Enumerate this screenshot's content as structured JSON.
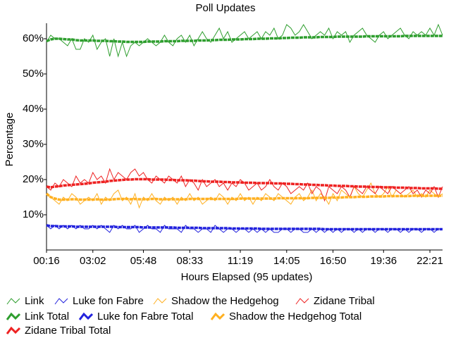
{
  "chart_data": {
    "type": "line",
    "title": "Poll Updates",
    "xlabel": "Hours Elapsed (95 updates)",
    "ylabel": "Percentage",
    "categories": [
      "00:16",
      null,
      null,
      null,
      null,
      null,
      null,
      null,
      null,
      null,
      null,
      "03:02",
      null,
      null,
      null,
      null,
      null,
      null,
      null,
      null,
      null,
      null,
      null,
      "05:48",
      null,
      null,
      null,
      null,
      null,
      null,
      null,
      null,
      null,
      null,
      "08:33",
      null,
      null,
      null,
      null,
      null,
      null,
      null,
      null,
      null,
      null,
      null,
      "11:19",
      null,
      null,
      null,
      null,
      null,
      null,
      null,
      null,
      null,
      null,
      "14:05",
      null,
      null,
      null,
      null,
      null,
      null,
      null,
      null,
      null,
      null,
      "16:50",
      null,
      null,
      null,
      null,
      null,
      null,
      null,
      null,
      null,
      null,
      null,
      "19:36",
      null,
      null,
      null,
      null,
      null,
      null,
      null,
      null,
      null,
      null,
      "22:21",
      null,
      null,
      null
    ],
    "ylim": [
      0,
      64.4
    ],
    "yticks": [
      {
        "value": 10,
        "label": "10%"
      },
      {
        "value": 20,
        "label": "20%"
      },
      {
        "value": 30,
        "label": "30%"
      },
      {
        "value": 40,
        "label": "40%"
      },
      {
        "value": 50,
        "label": "50%"
      },
      {
        "value": 60,
        "label": "60%"
      }
    ],
    "series": [
      {
        "name": "Link",
        "color": "#2e9e2e",
        "width": 1,
        "values": [
          59,
          61,
          60,
          60,
          59,
          58,
          60,
          57,
          57,
          60,
          59,
          61,
          57,
          59,
          60,
          55,
          60,
          55,
          59,
          55,
          58,
          59,
          58,
          59,
          60,
          59,
          58,
          59,
          61,
          59,
          58,
          60,
          61,
          59,
          61,
          58,
          60,
          62,
          60,
          59,
          61,
          63,
          60,
          62,
          59,
          60,
          61,
          62,
          60,
          61,
          62,
          60,
          62,
          61,
          63,
          60,
          61,
          64,
          63,
          61,
          62,
          64,
          62,
          60,
          61,
          62,
          61,
          63,
          60,
          62,
          61,
          62,
          59,
          61,
          62,
          63,
          61,
          60,
          59,
          61,
          62,
          60,
          61,
          62,
          63,
          61,
          60,
          62,
          61,
          62,
          61,
          63,
          61,
          64,
          61
        ]
      },
      {
        "name": "Luke fon Fabre",
        "color": "#2222dd",
        "width": 1,
        "values": [
          7,
          6,
          7,
          6,
          7,
          6,
          7,
          6,
          7,
          6,
          6,
          7,
          6,
          7,
          6,
          5,
          7,
          6,
          7,
          6,
          6,
          7,
          5,
          6,
          7,
          6,
          6,
          5,
          7,
          6,
          6,
          6,
          5,
          7,
          6,
          6,
          5,
          6,
          6,
          5,
          7,
          6,
          5,
          6,
          6,
          5,
          6,
          6,
          5,
          6,
          5,
          6,
          5,
          6,
          5,
          5,
          6,
          6,
          5,
          6,
          6,
          5,
          5,
          6,
          5,
          6,
          5,
          6,
          5,
          6,
          5,
          6,
          6,
          5,
          6,
          5,
          6,
          6,
          5,
          6,
          6,
          5,
          6,
          6,
          5,
          6,
          5,
          6,
          6,
          5,
          6,
          6,
          5,
          6,
          6
        ]
      },
      {
        "name": "Shadow the Hedgehog",
        "color": "#ffb020",
        "width": 1,
        "values": [
          16,
          15,
          14,
          13,
          15,
          14,
          16,
          15,
          13,
          14,
          15,
          14,
          16,
          13,
          15,
          14,
          16,
          17,
          14,
          15,
          13,
          16,
          12,
          15,
          14,
          16,
          14,
          13,
          15,
          14,
          15,
          13,
          15,
          14,
          16,
          14,
          15,
          13,
          14,
          15,
          14,
          16,
          15,
          13,
          15,
          14,
          16,
          14,
          15,
          13,
          15,
          14,
          16,
          15,
          14,
          16,
          15,
          14,
          13,
          15,
          16,
          14,
          15,
          17,
          14,
          16,
          15,
          13,
          16,
          14,
          17,
          16,
          15,
          18,
          16,
          15,
          17,
          19,
          16,
          15,
          16,
          18,
          15,
          17,
          16,
          15,
          16,
          17,
          15,
          16,
          15,
          17,
          16,
          15,
          16
        ]
      },
      {
        "name": "Zidane Tribal",
        "color": "#ee2222",
        "width": 1,
        "values": [
          18,
          17,
          19,
          18,
          20,
          19,
          18,
          21,
          19,
          20,
          19,
          22,
          20,
          21,
          19,
          23,
          20,
          22,
          21,
          20,
          22,
          23,
          21,
          22,
          20,
          19,
          21,
          20,
          19,
          21,
          20,
          19,
          21,
          18,
          20,
          19,
          17,
          20,
          18,
          19,
          20,
          18,
          19,
          17,
          19,
          18,
          20,
          19,
          17,
          18,
          19,
          17,
          18,
          20,
          18,
          17,
          19,
          18,
          16,
          17,
          18,
          17,
          19,
          16,
          18,
          17,
          14,
          18,
          17,
          16,
          18,
          17,
          15,
          18,
          17,
          16,
          18,
          17,
          16,
          18,
          17,
          16,
          18,
          17,
          16,
          17,
          18,
          16,
          17,
          15,
          17,
          16,
          18,
          15,
          18
        ]
      },
      {
        "name": "Link Total",
        "color": "#2e9e2e",
        "width": 3.5,
        "values": [
          59.3,
          59.8,
          60,
          60,
          59.9,
          59.8,
          59.8,
          59.6,
          59.5,
          59.5,
          59.5,
          59.5,
          59.4,
          59.4,
          59.4,
          59.3,
          59.3,
          59.2,
          59.2,
          59.1,
          59.1,
          59.1,
          59.1,
          59.1,
          59.2,
          59.2,
          59.2,
          59.2,
          59.3,
          59.3,
          59.3,
          59.3,
          59.4,
          59.4,
          59.4,
          59.4,
          59.5,
          59.5,
          59.5,
          59.6,
          59.6,
          59.7,
          59.7,
          59.7,
          59.8,
          59.8,
          59.8,
          59.9,
          59.9,
          59.9,
          60,
          60,
          60,
          60.1,
          60.1,
          60.1,
          60.2,
          60.2,
          60.3,
          60.3,
          60.3,
          60.4,
          60.4,
          60.4,
          60.4,
          60.5,
          60.5,
          60.5,
          60.5,
          60.6,
          60.6,
          60.6,
          60.6,
          60.6,
          60.6,
          60.6,
          60.7,
          60.7,
          60.7,
          60.7,
          60.7,
          60.7,
          60.7,
          60.7,
          60.7,
          60.8,
          60.8,
          60.8,
          60.8,
          60.8,
          60.8,
          60.8,
          60.8,
          60.8,
          60.8
        ]
      },
      {
        "name": "Luke fon Fabre Total",
        "color": "#2222dd",
        "width": 3.5,
        "values": [
          7,
          6.8,
          6.8,
          6.7,
          6.7,
          6.7,
          6.7,
          6.6,
          6.6,
          6.6,
          6.6,
          6.6,
          6.6,
          6.6,
          6.6,
          6.6,
          6.6,
          6.5,
          6.5,
          6.5,
          6.5,
          6.5,
          6.5,
          6.4,
          6.4,
          6.4,
          6.4,
          6.4,
          6.4,
          6.4,
          6.4,
          6.3,
          6.3,
          6.3,
          6.3,
          6.3,
          6.3,
          6.2,
          6.2,
          6.2,
          6.2,
          6.2,
          6.2,
          6.2,
          6.1,
          6.1,
          6.1,
          6.1,
          6.1,
          6.1,
          6.1,
          6,
          6,
          6,
          6,
          6,
          6,
          6,
          6,
          6,
          6,
          6,
          6,
          6,
          6,
          6,
          5.9,
          5.9,
          5.9,
          5.9,
          5.9,
          5.9,
          5.9,
          5.9,
          5.9,
          5.9,
          5.9,
          5.9,
          5.9,
          5.9,
          5.9,
          5.9,
          5.9,
          5.9,
          5.9,
          5.9,
          5.9,
          5.9,
          5.9,
          5.9,
          5.9,
          5.9,
          5.9,
          5.9,
          5.9
        ]
      },
      {
        "name": "Shadow the Hedgehog Total",
        "color": "#ffb020",
        "width": 3.5,
        "values": [
          16,
          15,
          14.6,
          14.3,
          14.3,
          14.3,
          14.4,
          14.4,
          14.3,
          14.3,
          14.3,
          14.3,
          14.4,
          14.3,
          14.3,
          14.3,
          14.4,
          14.5,
          14.5,
          14.5,
          14.4,
          14.5,
          14.4,
          14.4,
          14.4,
          14.5,
          14.5,
          14.4,
          14.4,
          14.4,
          14.4,
          14.4,
          14.4,
          14.4,
          14.5,
          14.5,
          14.5,
          14.5,
          14.5,
          14.5,
          14.5,
          14.5,
          14.5,
          14.5,
          14.5,
          14.5,
          14.6,
          14.6,
          14.6,
          14.6,
          14.6,
          14.6,
          14.6,
          14.6,
          14.6,
          14.7,
          14.7,
          14.7,
          14.7,
          14.7,
          14.7,
          14.7,
          14.7,
          14.8,
          14.8,
          14.8,
          14.8,
          14.8,
          14.9,
          14.9,
          14.9,
          15,
          15,
          15,
          15.1,
          15.1,
          15.1,
          15.2,
          15.2,
          15.2,
          15.2,
          15.3,
          15.3,
          15.3,
          15.3,
          15.3,
          15.3,
          15.4,
          15.4,
          15.4,
          15.4,
          15.4,
          15.4,
          15.4,
          15.4
        ]
      },
      {
        "name": "Zidane Tribal Total",
        "color": "#ee2222",
        "width": 3.5,
        "values": [
          18,
          17.8,
          18,
          18.1,
          18.3,
          18.4,
          18.5,
          18.6,
          18.7,
          18.8,
          18.9,
          19.1,
          19.2,
          19.3,
          19.4,
          19.6,
          19.7,
          19.8,
          19.9,
          20,
          20,
          20.1,
          20.1,
          20.1,
          20.1,
          20,
          20,
          20,
          20,
          19.9,
          19.9,
          19.8,
          19.8,
          19.8,
          19.7,
          19.7,
          19.6,
          19.5,
          19.5,
          19.4,
          19.4,
          19.4,
          19.3,
          19.3,
          19.2,
          19.2,
          19.2,
          19.1,
          19.1,
          19.1,
          19,
          19,
          19,
          19,
          18.9,
          18.9,
          18.9,
          18.8,
          18.8,
          18.7,
          18.7,
          18.6,
          18.6,
          18.5,
          18.5,
          18.4,
          18.4,
          18.3,
          18.3,
          18.2,
          18.2,
          18.2,
          18.1,
          18.1,
          18,
          18,
          18,
          17.9,
          17.9,
          17.9,
          17.8,
          17.8,
          17.8,
          17.7,
          17.7,
          17.7,
          17.6,
          17.6,
          17.6,
          17.5,
          17.5,
          17.5,
          17.5,
          17.4,
          17.4
        ]
      }
    ]
  }
}
